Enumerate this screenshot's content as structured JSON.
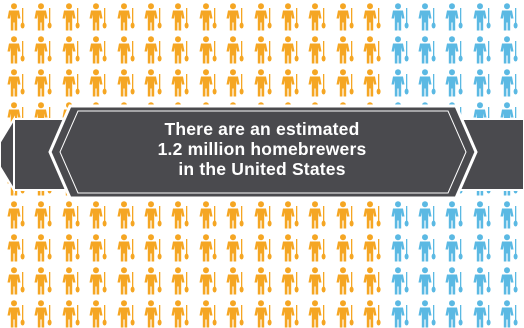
{
  "infographic": {
    "banner_lines": [
      "There are an estimated",
      "1.2 million homebrewers",
      "in the United States"
    ],
    "people_grid": {
      "rows": 10,
      "columns": 19,
      "orange_columns_per_row": 14,
      "blue_columns_per_row": 5,
      "icon": "person-with-spoon-icon"
    },
    "colors": {
      "orange": "#F5A623",
      "blue": "#5BB9E3",
      "banner_dark": "#4A4A4E",
      "banner_border": "#FFFFFF",
      "banner_text": "#FFFFFF"
    }
  }
}
